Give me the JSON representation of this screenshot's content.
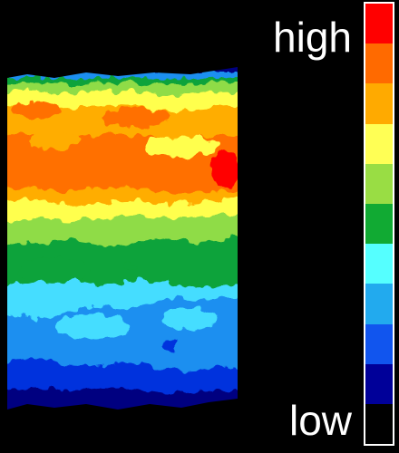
{
  "legend": {
    "high_label": "high",
    "low_label": "low",
    "colors_high_to_low": [
      "#ff0000",
      "#ff6a00",
      "#ffaa00",
      "#ffff55",
      "#99dd44",
      "#11aa33",
      "#55ffff",
      "#22aaee",
      "#1155ee",
      "#000099",
      "#000000"
    ]
  },
  "heatmap": {
    "color_scale_low_to_high": [
      "#000080",
      "#0033dd",
      "#1d8ff0",
      "#44ddff",
      "#11a33a",
      "#8fdc46",
      "#ffff4d",
      "#ffad00",
      "#ff7000",
      "#ff0000"
    ]
  }
}
